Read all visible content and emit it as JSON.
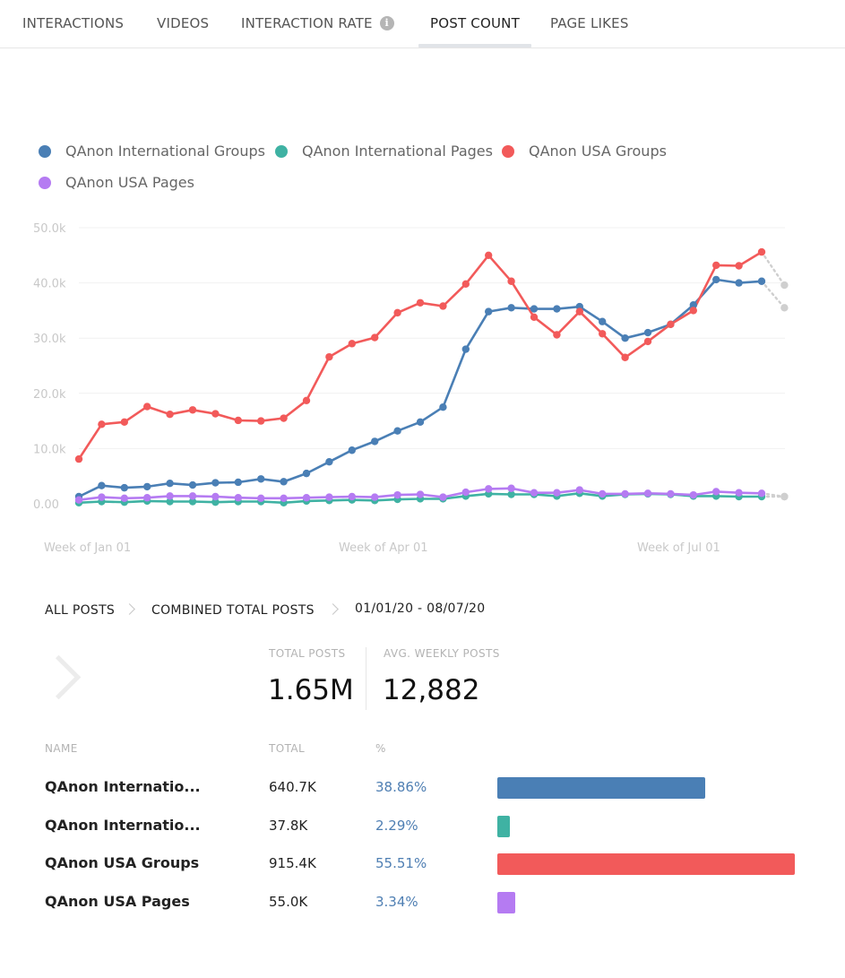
{
  "tabs": [
    {
      "label": "INTERACTIONS"
    },
    {
      "label": "VIDEOS"
    },
    {
      "label": "INTERACTION RATE"
    },
    {
      "label": "POST COUNT"
    },
    {
      "label": "PAGE LIKES"
    }
  ],
  "active_tab": "POST COUNT",
  "info_icon": "info-icon",
  "legend": [
    {
      "label": "QAnon International Groups",
      "color": "#4a7fb5"
    },
    {
      "label": "QAnon International Pages",
      "color": "#3fb2a3"
    },
    {
      "label": "QAnon USA Groups",
      "color": "#f25a5a"
    },
    {
      "label": "QAnon USA Pages",
      "color": "#b57bf2"
    }
  ],
  "chart_data": {
    "type": "line",
    "y_ticks": [
      "50.0k",
      "40.0k",
      "30.0k",
      "20.0k",
      "10.0k",
      "0.00"
    ],
    "x_ticks": [
      "Week of Jan 01",
      "Week of Apr 01",
      "Week of Jul 01"
    ],
    "ylim": [
      0,
      50000
    ],
    "grid": true,
    "legend_position": "top-left",
    "series": [
      {
        "name": "QAnon International Groups",
        "color": "#4a7fb5",
        "values": [
          1300,
          3300,
          2900,
          3100,
          3700,
          3400,
          3800,
          3900,
          4500,
          4000,
          5500,
          7600,
          9700,
          11300,
          13200,
          14800,
          17500,
          28000,
          34800,
          35500,
          35300,
          35300,
          35700,
          33000,
          30000,
          31000,
          32500,
          36000,
          40600,
          40000,
          40300
        ],
        "projection": 35500
      },
      {
        "name": "QAnon International Pages",
        "color": "#3fb2a3",
        "values": [
          200,
          400,
          300,
          500,
          400,
          400,
          300,
          400,
          400,
          200,
          500,
          600,
          700,
          600,
          800,
          900,
          900,
          1400,
          1800,
          1700,
          1700,
          1400,
          1900,
          1400,
          1700,
          1800,
          1700,
          1400,
          1400,
          1300,
          1300
        ],
        "projection": 1300
      },
      {
        "name": "QAnon USA Groups",
        "color": "#f25a5a",
        "values": [
          8100,
          14400,
          14800,
          17600,
          16200,
          17000,
          16300,
          15100,
          15000,
          15500,
          18700,
          26600,
          29000,
          30100,
          34600,
          36400,
          35800,
          39800,
          45000,
          40300,
          33800,
          30600,
          34800,
          30800,
          26500,
          29400,
          32500,
          35000,
          43200,
          43100,
          45600
        ],
        "projection": 39600
      },
      {
        "name": "QAnon USA Pages",
        "color": "#b57bf2",
        "values": [
          700,
          1200,
          1000,
          1100,
          1400,
          1400,
          1300,
          1100,
          1000,
          1000,
          1100,
          1200,
          1300,
          1200,
          1600,
          1700,
          1200,
          2100,
          2700,
          2800,
          2000,
          2000,
          2500,
          1800,
          1800,
          1900,
          1800,
          1600,
          2200,
          2000,
          1900
        ],
        "projection": 1300
      }
    ]
  },
  "breadcrumb": {
    "all_posts": "ALL POSTS",
    "combined": "COMBINED TOTAL POSTS",
    "date_range": "01/01/20 - 08/07/20"
  },
  "stats": {
    "total_posts_label": "TOTAL POSTS",
    "total_posts_value": "1.65M",
    "avg_weekly_label": "AVG. WEEKLY POSTS",
    "avg_weekly_value": "12,882"
  },
  "table": {
    "headers": {
      "name": "NAME",
      "total": "TOTAL",
      "pct": "%"
    },
    "rows": [
      {
        "name": "QAnon Internatio...",
        "total": "640.7K",
        "pct": "38.86%",
        "share": 0.3886,
        "color": "#4a7fb5"
      },
      {
        "name": "QAnon Internatio...",
        "total": "37.8K",
        "pct": "2.29%",
        "share": 0.0229,
        "color": "#3fb2a3"
      },
      {
        "name": "QAnon USA Groups",
        "total": "915.4K",
        "pct": "55.51%",
        "share": 0.5551,
        "color": "#f25a5a"
      },
      {
        "name": "QAnon USA Pages",
        "total": "55.0K",
        "pct": "3.34%",
        "share": 0.0334,
        "color": "#b57bf2"
      }
    ]
  }
}
